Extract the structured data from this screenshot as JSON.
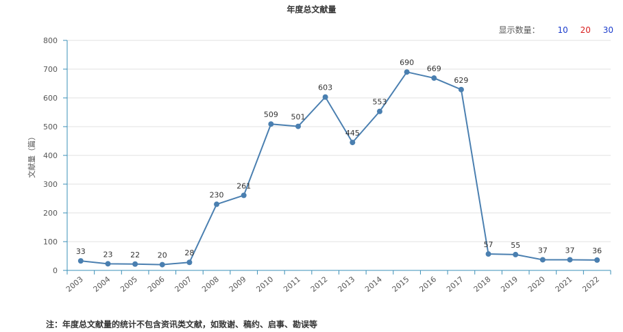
{
  "title": "年度总文献量",
  "count_selector": {
    "label": "显示数量：",
    "options": [
      {
        "label": "10",
        "color": "#1a3ccc"
      },
      {
        "label": "20",
        "color": "#d81e1e"
      },
      {
        "label": "30",
        "color": "#1a3ccc"
      }
    ]
  },
  "note": "注：年度总文献量的统计不包含资讯类文献，如致谢、稿约、启事、勘误等",
  "colors": {
    "line": "#4a7fb0",
    "grid": "#e2e2e2",
    "axis": "#3a8fb7"
  },
  "chart_data": {
    "type": "line",
    "title": "年度总文献量",
    "xlabel": "",
    "ylabel": "文献量（篇）",
    "ylim": [
      0,
      800
    ],
    "yticks": [
      "0",
      "100",
      "200",
      "300",
      "400",
      "500",
      "600",
      "700",
      "800"
    ],
    "grid": true,
    "categories": [
      "2003",
      "2004",
      "2005",
      "2006",
      "2007",
      "2008",
      "2009",
      "2010",
      "2011",
      "2012",
      "2013",
      "2014",
      "2015",
      "2016",
      "2017",
      "2018",
      "2019",
      "2020",
      "2021",
      "2022"
    ],
    "values": [
      33,
      23,
      22,
      20,
      28,
      230,
      261,
      509,
      501,
      603,
      445,
      553,
      690,
      669,
      629,
      57,
      55,
      37,
      37,
      36
    ]
  }
}
